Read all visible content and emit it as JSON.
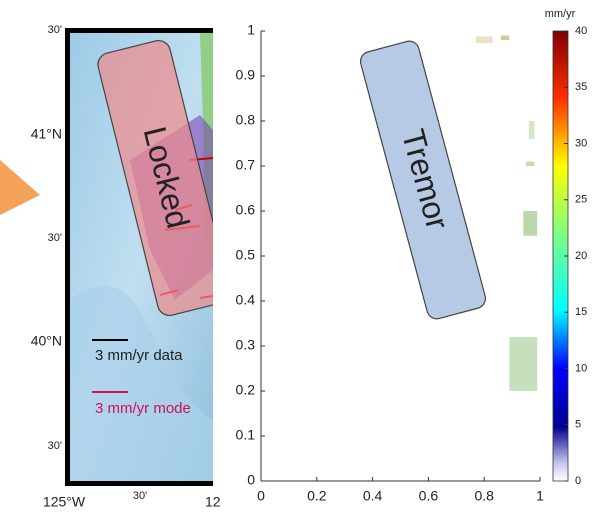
{
  "map": {
    "lat_labels": [
      "30'",
      "41°N",
      "30'",
      "40°N",
      "30'"
    ],
    "lon_labels": [
      "125°W",
      "30'",
      "12"
    ],
    "legend": [
      "3 mm/yr data",
      "3 mm/yr mode"
    ],
    "annotation": "Locked"
  },
  "chart_data": [
    {
      "type": "rect",
      "annotation": "Tremor",
      "rects": [
        {
          "x": [
            0.77,
            0.83
          ],
          "y": [
            0.973,
            0.988
          ],
          "color": "#ece3c6"
        },
        {
          "x": [
            0.86,
            0.89
          ],
          "y": [
            0.98,
            0.99
          ],
          "color": "#d8c79a"
        },
        {
          "x": [
            0.96,
            0.98
          ],
          "y": [
            0.76,
            0.8
          ],
          "color": "#d6e6c8"
        },
        {
          "x": [
            0.95,
            0.98
          ],
          "y": [
            0.7,
            0.71
          ],
          "color": "#c3dcb0"
        },
        {
          "x": [
            0.94,
            0.99
          ],
          "y": [
            0.545,
            0.6
          ],
          "color": "#bcd9ad"
        },
        {
          "x": [
            0.89,
            0.99
          ],
          "y": [
            0.2,
            0.32
          ],
          "color": "#c6e0bb"
        }
      ],
      "xlim": [
        0,
        1
      ],
      "ylim": [
        0,
        1
      ],
      "xticks": [
        0,
        0.2,
        0.4,
        0.6,
        0.8,
        1
      ],
      "yticks": [
        0,
        0.1,
        0.2,
        0.3,
        0.4,
        0.5,
        0.6,
        0.7,
        0.8,
        0.9,
        1
      ]
    },
    {
      "type": "colorbar",
      "title": "mm/yr",
      "ylim": [
        0,
        40
      ],
      "yticks": [
        0,
        5,
        10,
        15,
        20,
        25,
        30,
        35,
        40
      ]
    }
  ]
}
